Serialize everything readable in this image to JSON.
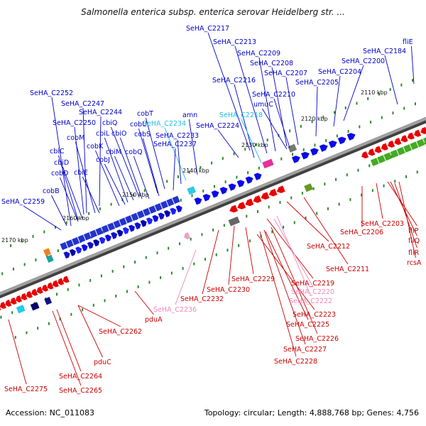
{
  "title": "Salmonella enterica subsp. enterica serovar Heidelberg str. ...",
  "footer": {
    "accession": "Accession: NC_011083",
    "summary": "Topology: circular; Length: 4,888,768 bp; Genes: 4,756"
  },
  "colors": {
    "forward": "#0a0ae6",
    "reverse": "#e80000",
    "pseudo_fwd": "#2fc8e8",
    "pseudo_rev": "#f0a0c8",
    "backbone": "#808080"
  },
  "kbp_labels": [
    "2110 kbp",
    "2120 kbp",
    "2130 kbp",
    "2140 kbp",
    "2150 kbp",
    "2160 kbp",
    "2170 kbp"
  ],
  "forward_labels": [
    {
      "text": "SeHA_C2217",
      "color": "#0000cc"
    },
    {
      "text": "SeHA_C2213",
      "color": "#0000cc"
    },
    {
      "text": "SeHA_C2209",
      "color": "#0000cc"
    },
    {
      "text": "SeHA_C2208",
      "color": "#0000cc"
    },
    {
      "text": "SeHA_C2207",
      "color": "#0000cc"
    },
    {
      "text": "SeHA_C2216",
      "color": "#0000cc"
    },
    {
      "text": "SeHA_C2210",
      "color": "#0000cc"
    },
    {
      "text": "umuC",
      "color": "#0000cc"
    },
    {
      "text": "SeHA_C2218",
      "color": "#22bbee"
    },
    {
      "text": "SeHA_C2224",
      "color": "#0000cc"
    },
    {
      "text": "SeHA_C2205",
      "color": "#0000cc"
    },
    {
      "text": "SeHA_C2204",
      "color": "#0000cc"
    },
    {
      "text": "SeHA_C2200",
      "color": "#0000cc"
    },
    {
      "text": "SeHA_C2184",
      "color": "#0000cc"
    },
    {
      "text": "fliE",
      "color": "#0000cc"
    },
    {
      "text": "SeHA_C2252",
      "color": "#0000cc"
    },
    {
      "text": "SeHA_C2247",
      "color": "#0000cc"
    },
    {
      "text": "SeHA_C2244",
      "color": "#0000cc"
    },
    {
      "text": "SeHA_C2250",
      "color": "#0000cc"
    },
    {
      "text": "cobT",
      "color": "#0000cc"
    },
    {
      "text": "cobU",
      "color": "#0000cc"
    },
    {
      "text": "SeHA_C2234",
      "color": "#22bbee"
    },
    {
      "text": "amn",
      "color": "#0000cc"
    },
    {
      "text": "cbiQ",
      "color": "#0000cc"
    },
    {
      "text": "cobM",
      "color": "#0000cc"
    },
    {
      "text": "cbiL",
      "color": "#0000cc"
    },
    {
      "text": "cbiO",
      "color": "#0000cc"
    },
    {
      "text": "cobS",
      "color": "#0000cc"
    },
    {
      "text": "SeHA_C2233",
      "color": "#0000cc"
    },
    {
      "text": "cobK",
      "color": "#0000cc"
    },
    {
      "text": "cbiM",
      "color": "#0000cc"
    },
    {
      "text": "cobQ",
      "color": "#0000cc"
    },
    {
      "text": "SeHA_C2237",
      "color": "#0000cc"
    },
    {
      "text": "cbiC",
      "color": "#0000cc"
    },
    {
      "text": "cobJ",
      "color": "#0000cc"
    },
    {
      "text": "cbiD",
      "color": "#0000cc"
    },
    {
      "text": "cobD",
      "color": "#0000cc"
    },
    {
      "text": "cbiE",
      "color": "#0000cc"
    },
    {
      "text": "cobB",
      "color": "#0000cc"
    },
    {
      "text": "SeHA_C2259",
      "color": "#0000cc"
    }
  ],
  "reverse_labels": [
    {
      "text": "SeHA_C2203",
      "color": "#cc0000"
    },
    {
      "text": "SeHA_C2206",
      "color": "#cc0000"
    },
    {
      "text": "fliP",
      "color": "#cc0000"
    },
    {
      "text": "fliQ",
      "color": "#cc0000"
    },
    {
      "text": "fliR",
      "color": "#cc0000"
    },
    {
      "text": "rcsA",
      "color": "#cc0000"
    },
    {
      "text": "SeHA_C2212",
      "color": "#cc0000"
    },
    {
      "text": "SeHA_C2211",
      "color": "#cc0000"
    },
    {
      "text": "SeHA_C2219",
      "color": "#cc0000"
    },
    {
      "text": "SeHA_C2220",
      "color": "#ee88bb"
    },
    {
      "text": "SeHA_C2222",
      "color": "#ee88bb"
    },
    {
      "text": "SeHA_C2229",
      "color": "#cc0000"
    },
    {
      "text": "SeHA_C2230",
      "color": "#cc0000"
    },
    {
      "text": "SeHA_C2232",
      "color": "#cc0000"
    },
    {
      "text": "SeHA_C2223",
      "color": "#cc0000"
    },
    {
      "text": "SeHA_C2225",
      "color": "#cc0000"
    },
    {
      "text": "SeHA_C2226",
      "color": "#cc0000"
    },
    {
      "text": "SeHA_C2227",
      "color": "#cc0000"
    },
    {
      "text": "SeHA_C2228",
      "color": "#cc0000"
    },
    {
      "text": "SeHA_C2236",
      "color": "#ee88bb"
    },
    {
      "text": "pduA",
      "color": "#cc0000"
    },
    {
      "text": "SeHA_C2262",
      "color": "#cc0000"
    },
    {
      "text": "pduC",
      "color": "#cc0000"
    },
    {
      "text": "SeHA_C2264",
      "color": "#cc0000"
    },
    {
      "text": "SeHA_C2265",
      "color": "#cc0000"
    },
    {
      "text": "SeHA_C2275",
      "color": "#cc0000"
    }
  ]
}
